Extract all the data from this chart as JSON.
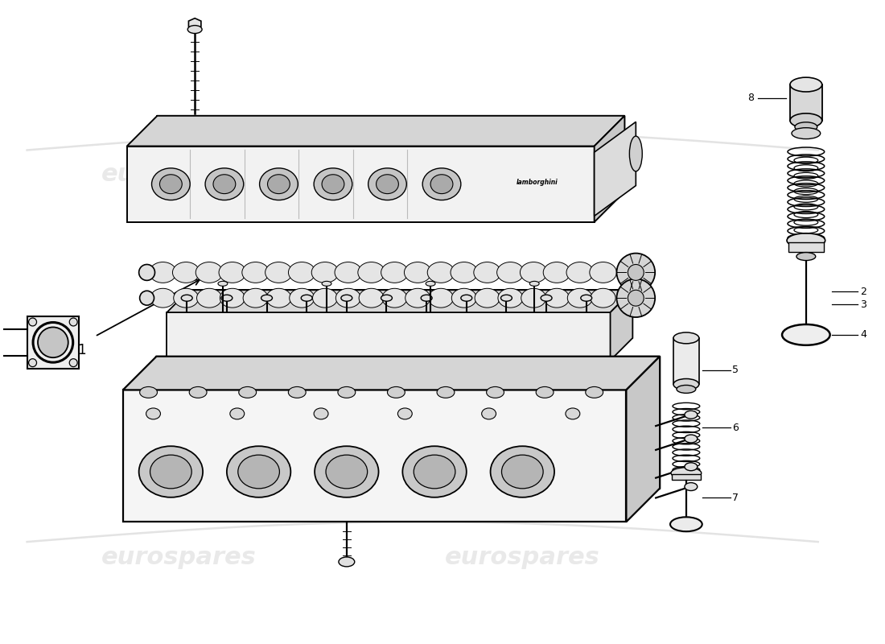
{
  "bg_color": "#ffffff",
  "line_color": "#000000",
  "watermark_color": "#e0e0e0",
  "part_labels": [
    "1",
    "2",
    "3",
    "4",
    "5",
    "6",
    "7",
    "8"
  ]
}
